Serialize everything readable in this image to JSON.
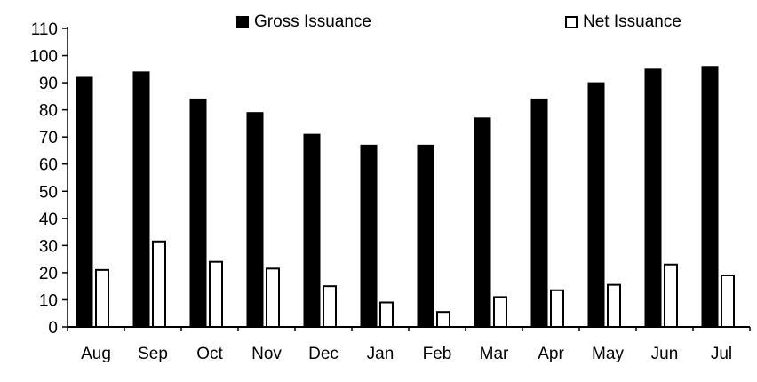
{
  "chart_data": {
    "type": "bar",
    "title": "",
    "xlabel": "",
    "ylabel": "",
    "categories": [
      "Aug",
      "Sep",
      "Oct",
      "Nov",
      "Dec",
      "Jan",
      "Feb",
      "Mar",
      "Apr",
      "May",
      "Jun",
      "Jul"
    ],
    "series": [
      {
        "name": "Gross Issuance",
        "fill": "#000000",
        "stroke": "#000000",
        "values": [
          92,
          94,
          84,
          79,
          71,
          67,
          67,
          77,
          84,
          90,
          95,
          96
        ]
      },
      {
        "name": "Net Issuance",
        "fill": "#ffffff",
        "stroke": "#000000",
        "values": [
          21,
          31.5,
          24,
          21.5,
          15,
          9,
          5.5,
          11,
          13.5,
          15.5,
          23,
          19
        ]
      }
    ],
    "ylim": [
      0,
      110
    ],
    "ytick_step": 10,
    "ytick_labels": [
      "0",
      "10",
      "20",
      "30",
      "40",
      "50",
      "60",
      "70",
      "80",
      "90",
      "100",
      "110"
    ],
    "grid": false,
    "legend_position": "top"
  },
  "legend": {
    "gross_label": "Gross Issuance",
    "net_label": "Net Issuance"
  },
  "colors": {
    "axis": "#000000",
    "background": "#ffffff",
    "gross_bar": "#000000",
    "net_bar_fill": "#ffffff",
    "net_bar_border": "#000000"
  }
}
